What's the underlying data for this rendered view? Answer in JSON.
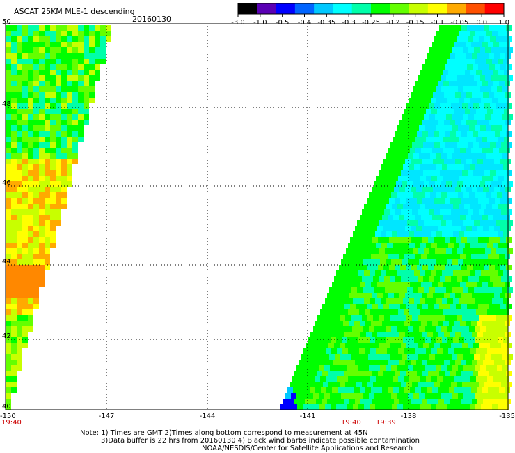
{
  "header": {
    "title": "ASCAT 25KM MLE-1 descending",
    "date": "20160130"
  },
  "colorbar": {
    "tick_labels": [
      "-3.0",
      "-1.0",
      "-0.5",
      "-0.4",
      "-0.35",
      "-0.3",
      "-0.25",
      "-0.2",
      "-0.15",
      "-0.1",
      "-0.05",
      "0.0",
      "1.0"
    ],
    "colors": [
      "#000000",
      "#5a00b4",
      "#0000ff",
      "#0064ff",
      "#00c8ff",
      "#00ffff",
      "#00ffaa",
      "#00ff00",
      "#64ff00",
      "#c8ff00",
      "#ffff00",
      "#ffaa00",
      "#ff5000",
      "#ff0000"
    ]
  },
  "map": {
    "lon_labels": [
      "-150",
      "-147",
      "-144",
      "-141",
      "-138",
      "-135"
    ],
    "lat_labels": [
      "50",
      "48",
      "46",
      "44",
      "42",
      "40"
    ],
    "time_labels": [
      "19:40",
      "19:40",
      "19:39"
    ],
    "time_color": "#cc0000",
    "land_color": "#ffffff"
  },
  "notes": {
    "line1": "Note: 1) Times are GMT 2)Times along bottom correspond to measurement at 45N",
    "line2": "3)Data buffer is 22 hrs from 20160130 4) Black wind barbs indicate possible contamination",
    "line3": "NOAA/NESDIS/Center for Satellite Applications and Research"
  }
}
